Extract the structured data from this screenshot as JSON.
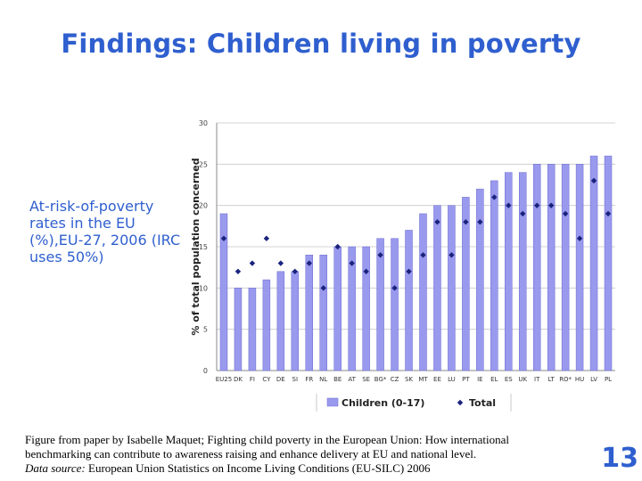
{
  "slide": {
    "title": "Findings: Children living in poverty",
    "side_text": "At-risk-of-poverty rates in the EU (%),EU-27, 2006 (IRC uses 50%)",
    "caption_line1": "Figure from paper by Isabelle Maquet; Fighting child poverty in the European Union: How international",
    "caption_line2": "benchmarking can contribute to awareness raising and enhance delivery at EU and national level.",
    "caption_source_label": "Data source:",
    "caption_source_text": " European Union Statistics on Income Living Conditions (EU-SILC) 2006",
    "page_number": "13"
  },
  "chart_data": {
    "type": "bar",
    "ylabel": "% of total population concerned",
    "ylim": [
      0,
      30
    ],
    "yticks": [
      0,
      5,
      10,
      15,
      20,
      25,
      30
    ],
    "grid": true,
    "legend_position": "bottom",
    "categories": [
      "EU25",
      "DK",
      "FI",
      "CY",
      "DE",
      "SI",
      "FR",
      "NL",
      "BE",
      "AT",
      "SE",
      "BG*",
      "CZ",
      "SK",
      "MT",
      "EE",
      "LU",
      "PT",
      "IE",
      "EL",
      "ES",
      "UK",
      "IT",
      "LT",
      "RO*",
      "HU",
      "LV",
      "PL"
    ],
    "series": [
      {
        "name": "Children (0-17)",
        "kind": "bar",
        "color": "#9999ee",
        "values": [
          19,
          10,
          10,
          11,
          12,
          12,
          14,
          14,
          15,
          15,
          15,
          16,
          16,
          17,
          19,
          20,
          20,
          21,
          22,
          23,
          24,
          24,
          25,
          25,
          25,
          25,
          26,
          26
        ]
      },
      {
        "name": "Total",
        "kind": "marker",
        "color": "#1a237e",
        "values": [
          16,
          12,
          13,
          16,
          13,
          12,
          13,
          10,
          15,
          13,
          12,
          14,
          10,
          12,
          14,
          18,
          14,
          18,
          18,
          21,
          20,
          19,
          20,
          20,
          19,
          16,
          23,
          19
        ]
      }
    ]
  }
}
